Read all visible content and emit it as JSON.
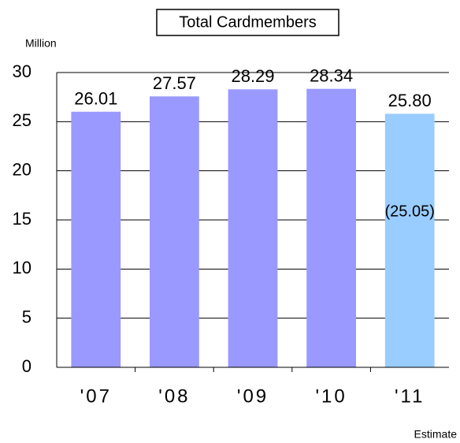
{
  "chart_data": {
    "type": "bar",
    "title": "Total Cardmembers",
    "y_label": "Million",
    "note": "Estimate",
    "categories": [
      "'07",
      "'08",
      "'09",
      "'10",
      "'11"
    ],
    "values": [
      26.01,
      27.57,
      28.29,
      28.34,
      25.8
    ],
    "value_labels": [
      "26.01",
      "27.57",
      "28.29",
      "28.34",
      "25.80"
    ],
    "colors": [
      "#9999ff",
      "#9999ff",
      "#9999ff",
      "#9999ff",
      "#99ccff"
    ],
    "annotations": [
      {
        "text": "(25.05)",
        "category": 4,
        "value": 25.05
      }
    ],
    "ylim": [
      0,
      30
    ],
    "yticks": [
      0,
      5,
      10,
      15,
      20,
      25,
      30
    ],
    "grid": true
  }
}
